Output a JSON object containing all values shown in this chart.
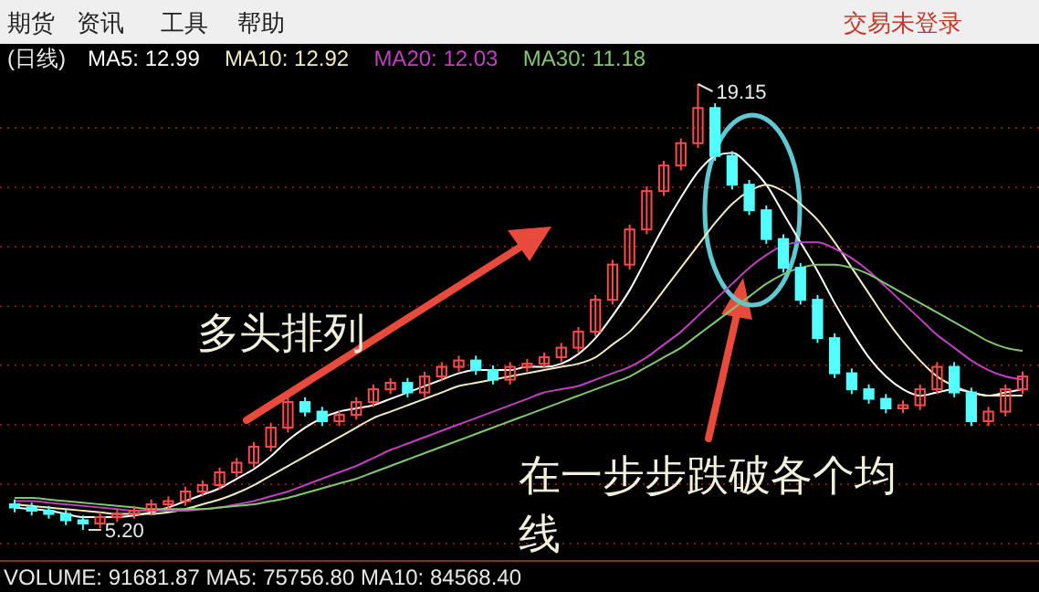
{
  "chart_data": {
    "type": "candlestick",
    "title": "(日线)",
    "legend": "top left",
    "grid": true,
    "categories": [
      null,
      null,
      null,
      null,
      null,
      null,
      null,
      null,
      null,
      null,
      null,
      null,
      null,
      null,
      null,
      null,
      null,
      null,
      null,
      null,
      null,
      null,
      null,
      null,
      null,
      null,
      null,
      null,
      null,
      null,
      null,
      null,
      null,
      null,
      null,
      null,
      null,
      null,
      null,
      null,
      null,
      null,
      null,
      null,
      null,
      null,
      null,
      null,
      null,
      null,
      null,
      null,
      null,
      null,
      null,
      null,
      null,
      null,
      null,
      null
    ],
    "ohlc": [
      [
        6.0,
        6.15,
        5.75,
        5.9
      ],
      [
        5.9,
        6.05,
        5.65,
        5.8
      ],
      [
        5.8,
        5.95,
        5.55,
        5.7
      ],
      [
        5.7,
        5.85,
        5.35,
        5.5
      ],
      [
        5.5,
        5.65,
        5.2,
        5.4
      ],
      [
        5.4,
        5.75,
        5.25,
        5.6
      ],
      [
        5.6,
        5.85,
        5.45,
        5.7
      ],
      [
        5.7,
        5.95,
        5.55,
        5.8
      ],
      [
        5.8,
        6.15,
        5.65,
        6.0
      ],
      [
        6.0,
        6.25,
        5.85,
        6.1
      ],
      [
        6.1,
        6.55,
        5.95,
        6.4
      ],
      [
        6.4,
        6.75,
        6.25,
        6.6
      ],
      [
        6.6,
        7.15,
        6.45,
        7.0
      ],
      [
        7.0,
        7.45,
        6.85,
        7.3
      ],
      [
        7.3,
        7.95,
        7.15,
        7.8
      ],
      [
        7.8,
        8.55,
        7.65,
        8.4
      ],
      [
        8.4,
        9.35,
        8.25,
        9.2
      ],
      [
        9.2,
        9.35,
        8.75,
        8.9
      ],
      [
        8.9,
        9.05,
        8.45,
        8.6
      ],
      [
        8.6,
        8.95,
        8.45,
        8.8
      ],
      [
        8.8,
        9.35,
        8.65,
        9.2
      ],
      [
        9.2,
        9.75,
        9.05,
        9.6
      ],
      [
        9.6,
        9.95,
        9.45,
        9.8
      ],
      [
        9.8,
        9.95,
        9.35,
        9.5
      ],
      [
        9.5,
        10.15,
        9.35,
        10.0
      ],
      [
        10.0,
        10.45,
        9.85,
        10.3
      ],
      [
        10.3,
        10.65,
        10.15,
        10.5
      ],
      [
        10.5,
        10.65,
        10.05,
        10.2
      ],
      [
        10.2,
        10.35,
        9.75,
        9.9
      ],
      [
        9.9,
        10.45,
        9.75,
        10.3
      ],
      [
        10.3,
        10.55,
        10.15,
        10.4
      ],
      [
        10.4,
        10.75,
        10.25,
        10.6
      ],
      [
        10.6,
        11.05,
        10.45,
        10.9
      ],
      [
        10.9,
        11.55,
        10.75,
        11.4
      ],
      [
        11.4,
        12.55,
        11.25,
        12.4
      ],
      [
        12.4,
        13.65,
        12.25,
        13.5
      ],
      [
        13.5,
        14.75,
        13.35,
        14.6
      ],
      [
        14.6,
        15.95,
        14.45,
        15.8
      ],
      [
        15.8,
        16.75,
        15.65,
        16.6
      ],
      [
        16.6,
        17.45,
        16.45,
        17.3
      ],
      [
        17.3,
        19.15,
        17.15,
        18.4
      ],
      [
        18.4,
        18.55,
        16.75,
        16.9
      ],
      [
        16.9,
        17.05,
        15.85,
        16.0
      ],
      [
        16.0,
        16.15,
        15.05,
        15.2
      ],
      [
        15.2,
        15.35,
        14.15,
        14.3
      ],
      [
        14.3,
        14.45,
        13.25,
        13.4
      ],
      [
        13.4,
        13.55,
        12.25,
        12.4
      ],
      [
        12.4,
        12.55,
        11.05,
        11.2
      ],
      [
        11.2,
        11.35,
        9.95,
        10.1
      ],
      [
        10.1,
        10.25,
        9.45,
        9.6
      ],
      [
        9.6,
        9.75,
        9.15,
        9.3
      ],
      [
        9.3,
        9.45,
        8.85,
        9.0
      ],
      [
        9.0,
        9.25,
        8.85,
        9.1
      ],
      [
        9.1,
        9.75,
        8.95,
        9.6
      ],
      [
        9.6,
        10.45,
        9.45,
        10.3
      ],
      [
        10.3,
        10.45,
        9.35,
        9.5
      ],
      [
        9.5,
        9.65,
        8.45,
        8.6
      ],
      [
        8.6,
        9.05,
        8.45,
        8.9
      ],
      [
        8.9,
        9.75,
        8.75,
        9.6
      ],
      [
        9.6,
        10.15,
        9.45,
        10.0
      ]
    ],
    "series": [
      {
        "type": "line",
        "name": "MA5: 12.99",
        "color": "#ffffff",
        "values": [
          5.9,
          5.85,
          5.8,
          5.7,
          5.6,
          5.6,
          5.6,
          5.65,
          5.75,
          5.9,
          6.1,
          6.3,
          6.5,
          6.8,
          7.1,
          7.5,
          8.0,
          8.4,
          8.7,
          8.9,
          9.0,
          9.1,
          9.3,
          9.5,
          9.7,
          9.9,
          10.1,
          10.2,
          10.2,
          10.2,
          10.3,
          10.3,
          10.4,
          10.7,
          11.2,
          11.9,
          12.7,
          13.7,
          14.7,
          15.6,
          16.4,
          16.9,
          17.0,
          16.6,
          16.0,
          15.1,
          14.2,
          13.3,
          12.3,
          11.4,
          10.6,
          10.0,
          9.6,
          9.4,
          9.5,
          9.6,
          9.5,
          9.4,
          9.5,
          9.6
        ]
      },
      {
        "type": "line",
        "name": "MA10: 12.92",
        "color": "#f0ecc0",
        "values": [
          6.0,
          5.95,
          5.9,
          5.85,
          5.8,
          5.75,
          5.7,
          5.7,
          5.7,
          5.75,
          5.85,
          6.0,
          6.15,
          6.35,
          6.6,
          6.9,
          7.2,
          7.5,
          7.8,
          8.1,
          8.4,
          8.7,
          8.9,
          9.1,
          9.3,
          9.5,
          9.7,
          9.8,
          9.9,
          10.0,
          10.1,
          10.2,
          10.3,
          10.4,
          10.6,
          11.0,
          11.4,
          12.0,
          12.7,
          13.4,
          14.1,
          14.8,
          15.4,
          15.8,
          16.0,
          15.8,
          15.4,
          14.9,
          14.2,
          13.4,
          12.6,
          11.8,
          11.1,
          10.5,
          10.0,
          9.7,
          9.5,
          9.4,
          9.4,
          9.4
        ]
      },
      {
        "type": "line",
        "name": "MA20: 12.03",
        "color": "#c040c0",
        "values": [
          6.1,
          6.1,
          6.05,
          6.0,
          5.95,
          5.9,
          5.85,
          5.8,
          5.8,
          5.8,
          5.8,
          5.85,
          5.9,
          6.0,
          6.1,
          6.25,
          6.4,
          6.6,
          6.8,
          7.0,
          7.2,
          7.45,
          7.7,
          7.9,
          8.1,
          8.3,
          8.5,
          8.7,
          8.9,
          9.1,
          9.3,
          9.5,
          9.6,
          9.7,
          9.9,
          10.1,
          10.3,
          10.6,
          11.0,
          11.4,
          11.9,
          12.4,
          12.9,
          13.4,
          13.8,
          14.1,
          14.2,
          14.2,
          14.0,
          13.7,
          13.3,
          12.8,
          12.3,
          11.8,
          11.3,
          10.9,
          10.5,
          10.2,
          10.0,
          9.9
        ]
      },
      {
        "type": "line",
        "name": "MA30: 11.18",
        "color": "#80c870",
        "values": [
          6.2,
          6.2,
          6.15,
          6.1,
          6.05,
          6.0,
          5.95,
          5.9,
          5.85,
          5.85,
          5.85,
          5.85,
          5.9,
          5.95,
          6.0,
          6.1,
          6.2,
          6.35,
          6.5,
          6.65,
          6.8,
          7.0,
          7.2,
          7.4,
          7.6,
          7.8,
          8.0,
          8.2,
          8.4,
          8.6,
          8.8,
          9.0,
          9.2,
          9.4,
          9.6,
          9.8,
          10.0,
          10.3,
          10.6,
          10.9,
          11.3,
          11.7,
          12.1,
          12.5,
          12.9,
          13.2,
          13.4,
          13.5,
          13.5,
          13.4,
          13.2,
          12.9,
          12.6,
          12.3,
          12.0,
          11.7,
          11.4,
          11.1,
          10.9,
          10.8
        ]
      }
    ],
    "yticks": [
      {
        "value": 17.78,
        "label": null
      },
      {
        "value": 15.92,
        "label": null
      },
      {
        "value": 14.06,
        "label": null
      },
      {
        "value": 12.2,
        "label": null
      },
      {
        "value": 10.35,
        "label": null
      },
      {
        "value": 8.49,
        "label": null
      },
      {
        "value": 6.63,
        "label": null
      },
      {
        "value": 4.77,
        "label": null
      }
    ],
    "annotations": [
      "期货",
      "资讯",
      "工具",
      "帮助",
      "交易未登录",
      "19.15",
      "5.20",
      "多头排列",
      "在一步步跌破各个均线",
      "VOLUME: 91681.87  MA5: 75756.80  MA10: 84568.40"
    ]
  }
}
